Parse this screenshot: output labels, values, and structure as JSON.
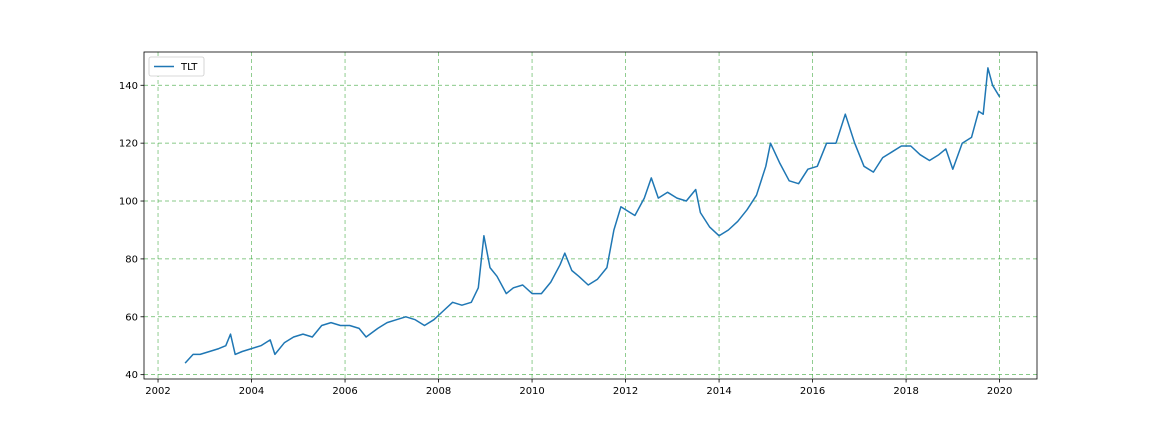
{
  "chart_data": {
    "type": "line",
    "title": "",
    "xlabel": "",
    "ylabel": "",
    "xlim": [
      2001.7,
      2020.8
    ],
    "ylim": [
      38.5,
      151.5
    ],
    "x_ticks": [
      2002,
      2004,
      2006,
      2008,
      2010,
      2012,
      2014,
      2016,
      2018,
      2020
    ],
    "x_tick_labels": [
      "2002",
      "2004",
      "2006",
      "2008",
      "2010",
      "2012",
      "2014",
      "2016",
      "2018",
      "2020"
    ],
    "y_ticks": [
      40,
      60,
      80,
      100,
      120,
      140
    ],
    "y_tick_labels": [
      "40",
      "60",
      "80",
      "100",
      "120",
      "140"
    ],
    "grid": true,
    "grid_color": "#2ca02c",
    "legend": {
      "position": "upper-left",
      "entries": [
        "TLT"
      ]
    },
    "series": [
      {
        "name": "TLT",
        "color": "#1f77b4",
        "x": [
          2002.58,
          2002.75,
          2002.9,
          2003.1,
          2003.3,
          2003.45,
          2003.55,
          2003.65,
          2003.8,
          2004.0,
          2004.2,
          2004.4,
          2004.5,
          2004.7,
          2004.9,
          2005.1,
          2005.3,
          2005.5,
          2005.7,
          2005.9,
          2006.1,
          2006.3,
          2006.45,
          2006.7,
          2006.9,
          2007.1,
          2007.3,
          2007.5,
          2007.7,
          2007.9,
          2008.1,
          2008.3,
          2008.5,
          2008.7,
          2008.85,
          2008.97,
          2009.1,
          2009.25,
          2009.45,
          2009.6,
          2009.8,
          2010.0,
          2010.2,
          2010.4,
          2010.6,
          2010.7,
          2010.85,
          2011.0,
          2011.2,
          2011.4,
          2011.6,
          2011.75,
          2011.9,
          2012.1,
          2012.2,
          2012.4,
          2012.55,
          2012.7,
          2012.9,
          2013.1,
          2013.3,
          2013.5,
          2013.6,
          2013.8,
          2014.0,
          2014.2,
          2014.4,
          2014.6,
          2014.8,
          2015.0,
          2015.1,
          2015.3,
          2015.5,
          2015.7,
          2015.9,
          2016.1,
          2016.3,
          2016.5,
          2016.7,
          2016.9,
          2017.1,
          2017.3,
          2017.5,
          2017.7,
          2017.9,
          2018.1,
          2018.3,
          2018.5,
          2018.7,
          2018.85,
          2019.0,
          2019.2,
          2019.4,
          2019.55,
          2019.65,
          2019.75,
          2019.85,
          2020.0
        ],
        "y": [
          44,
          47,
          47,
          48,
          49,
          50,
          54,
          47,
          48,
          49,
          50,
          52,
          47,
          51,
          53,
          54,
          53,
          57,
          58,
          57,
          57,
          56,
          53,
          56,
          58,
          59,
          60,
          59,
          57,
          59,
          62,
          65,
          64,
          65,
          70,
          88,
          77,
          74,
          68,
          70,
          71,
          68,
          68,
          72,
          78,
          82,
          76,
          74,
          71,
          73,
          77,
          90,
          98,
          96,
          95,
          101,
          108,
          101,
          103,
          101,
          100,
          104,
          96,
          91,
          88,
          90,
          93,
          97,
          102,
          112,
          120,
          113,
          107,
          106,
          111,
          112,
          120,
          120,
          130,
          120,
          112,
          110,
          115,
          117,
          119,
          119,
          116,
          114,
          116,
          118,
          111,
          120,
          122,
          131,
          130,
          146,
          140,
          136
        ]
      }
    ]
  }
}
